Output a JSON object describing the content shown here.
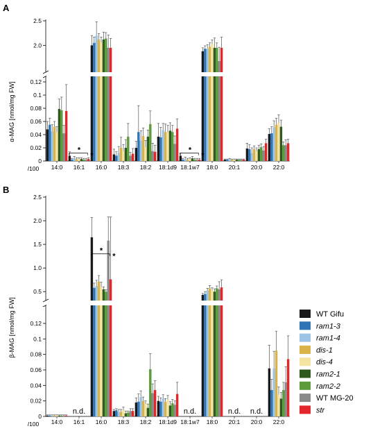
{
  "chart_data": [
    {
      "type": "bar",
      "panel_label": "A",
      "ylabel": "α-MAG [nmol/mg FW]",
      "x_extra_label": "/100",
      "broken_axis": true,
      "lower_ylim": [
        0,
        0.12
      ],
      "lower_yticks": [
        "0",
        "0.02",
        "0.04",
        "0.06",
        "0.08",
        "0.1",
        "0.12"
      ],
      "upper_ylim": [
        1.75,
        2.5
      ],
      "upper_yticks": [
        "2.0",
        "2.5"
      ],
      "upper_categories_note": "16:0 and 18:0 drawn on upper scale",
      "categories": [
        "14:0",
        "16:1",
        "16:0",
        "18:3",
        "18:2",
        "18:1d9",
        "18:1w7",
        "18:0",
        "20:1",
        "20:0",
        "22:0"
      ],
      "series": [
        {
          "name": "WT Gifu",
          "values": [
            0.048,
            0.008,
            2.0,
            0.01,
            0.02,
            0.037,
            0.008,
            1.88,
            0.002,
            0.019,
            0.041
          ],
          "errors": [
            0.012,
            0.006,
            0.2,
            0.008,
            0.01,
            0.02,
            0.004,
            0.07,
            0.001,
            0.008,
            0.008
          ]
        },
        {
          "name": "ram1-3",
          "values": [
            0.055,
            0.002,
            2.05,
            0.008,
            0.044,
            0.036,
            0.002,
            1.93,
            0.002,
            0.018,
            0.042
          ],
          "errors": [
            0.01,
            0.002,
            0.12,
            0.006,
            0.04,
            0.015,
            0.002,
            0.06,
            0.001,
            0.007,
            0.01
          ]
        },
        {
          "name": "ram1-4",
          "values": [
            0.045,
            0.004,
            2.2,
            0.012,
            0.031,
            0.047,
            0.003,
            1.93,
            0.003,
            0.012,
            0.051
          ],
          "errors": [
            0.01,
            0.003,
            0.28,
            0.01,
            0.015,
            0.01,
            0.003,
            0.08,
            0.001,
            0.008,
            0.01
          ]
        },
        {
          "name": "dis-1",
          "values": [
            0.052,
            0.003,
            2.12,
            0.02,
            0.038,
            0.044,
            0.002,
            1.97,
            0.002,
            0.018,
            0.055
          ],
          "errors": [
            0.008,
            0.002,
            0.12,
            0.016,
            0.012,
            0.012,
            0.002,
            0.08,
            0.001,
            0.005,
            0.01
          ]
        },
        {
          "name": "dis-4",
          "values": [
            0.044,
            0.003,
            2.06,
            0.015,
            0.021,
            0.044,
            0.003,
            2.03,
            0.002,
            0.015,
            0.058
          ],
          "errors": [
            0.008,
            0.002,
            0.11,
            0.01,
            0.01,
            0.01,
            0.002,
            0.08,
            0.001,
            0.005,
            0.012
          ]
        },
        {
          "name": "ram2-1",
          "values": [
            0.079,
            0.003,
            2.12,
            0.02,
            0.037,
            0.046,
            0.004,
            1.95,
            0.002,
            0.018,
            0.052
          ],
          "errors": [
            0.015,
            0.002,
            0.15,
            0.012,
            0.01,
            0.012,
            0.003,
            0.2,
            0.001,
            0.006,
            0.01
          ]
        },
        {
          "name": "ram2-2",
          "values": [
            0.077,
            0.002,
            2.14,
            0.037,
            0.056,
            0.044,
            0.002,
            1.95,
            0.002,
            0.021,
            0.024
          ],
          "errors": [
            0.02,
            0.002,
            0.12,
            0.02,
            0.02,
            0.01,
            0.002,
            0.1,
            0.001,
            0.005,
            0.005
          ]
        },
        {
          "name": "WT MG-20",
          "values": [
            0.042,
            0.002,
            1.95,
            0.008,
            0.015,
            0.026,
            0.002,
            1.68,
            0.002,
            0.016,
            0.024
          ],
          "errors": [
            0.012,
            0.002,
            0.26,
            0.005,
            0.012,
            0.012,
            0.002,
            0.28,
            0.001,
            0.006,
            0.008
          ]
        },
        {
          "name": "str",
          "values": [
            0.076,
            0.003,
            1.95,
            0.011,
            0.014,
            0.049,
            0.002,
            1.95,
            0.002,
            0.027,
            0.027
          ],
          "errors": [
            0.04,
            0.002,
            0.19,
            0.008,
            0.01,
            0.015,
            0.002,
            0.22,
            0.001,
            0.006,
            0.006
          ]
        }
      ],
      "annotations": [
        {
          "text": "*",
          "category": "16:1"
        },
        {
          "text": "*",
          "category": "16:1"
        },
        {
          "text": "*",
          "category": "18:1w7"
        },
        {
          "text": "*",
          "category": "18:1w7"
        }
      ]
    },
    {
      "type": "bar",
      "panel_label": "B",
      "ylabel": "β-MAG [nmol/mg FW]",
      "x_extra_label": "/100",
      "broken_axis": true,
      "lower_ylim": [
        0,
        0.12
      ],
      "lower_yticks": [
        "0",
        "0.02",
        "0.04",
        "0.06",
        "0.08",
        "0.1",
        "0.12"
      ],
      "upper_ylim": [
        0.4,
        2.5
      ],
      "upper_yticks": [
        "0.5",
        "1.0",
        "1.5",
        "2.0",
        "2.5"
      ],
      "categories": [
        "14:0",
        "16:1",
        "16:0",
        "18:3",
        "18:2",
        "18:1d9",
        "18:1w7",
        "18:0",
        "20:1",
        "20:0",
        "22:0"
      ],
      "not_detected_label": "n.d.",
      "not_detected_categories": [
        "16:1",
        "18:1w7",
        "20:1",
        "20:0"
      ],
      "series": [
        {
          "name": "WT Gifu",
          "values": [
            0.001,
            null,
            1.65,
            0.007,
            0.018,
            0.02,
            null,
            0.43,
            null,
            null,
            0.062
          ],
          "errors": [
            0.001,
            null,
            0.42,
            0.002,
            0.006,
            0.006,
            null,
            0.03,
            null,
            null,
            0.03
          ]
        },
        {
          "name": "ram1-3",
          "values": [
            0.001,
            null,
            0.58,
            0.008,
            0.019,
            0.019,
            null,
            0.45,
            null,
            null,
            0.034
          ],
          "errors": [
            0.001,
            null,
            0.1,
            0.002,
            0.01,
            0.005,
            null,
            0.05,
            null,
            null,
            0.014
          ]
        },
        {
          "name": "ram1-4",
          "values": [
            0.001,
            null,
            0.62,
            0.006,
            0.025,
            0.023,
            null,
            0.52,
            null,
            null,
            0.062
          ],
          "errors": [
            0.001,
            null,
            0.12,
            0.003,
            0.008,
            0.005,
            null,
            0.05,
            null,
            null,
            0.022
          ]
        },
        {
          "name": "dis-1",
          "values": [
            0.001,
            null,
            0.71,
            0.006,
            0.02,
            0.019,
            null,
            0.57,
            null,
            null,
            0.085
          ],
          "errors": [
            0.001,
            null,
            0.13,
            0.003,
            0.005,
            0.004,
            null,
            0.06,
            null,
            null,
            0.025
          ]
        },
        {
          "name": "dis-4",
          "values": [
            0.001,
            null,
            0.6,
            0.008,
            0.016,
            0.022,
            null,
            0.53,
            null,
            null,
            0.028
          ],
          "errors": [
            0.001,
            null,
            0.1,
            0.004,
            0.004,
            0.005,
            null,
            0.05,
            null,
            null,
            0.01
          ]
        },
        {
          "name": "ram2-1",
          "values": [
            0.001,
            null,
            0.55,
            0.004,
            0.011,
            0.014,
            null,
            0.5,
            null,
            null,
            0.023
          ],
          "errors": [
            0.001,
            null,
            0.05,
            0.003,
            0.005,
            0.005,
            null,
            0.06,
            null,
            null,
            0.008
          ]
        },
        {
          "name": "ram2-2",
          "values": [
            0.001,
            null,
            0.5,
            0.005,
            0.061,
            0.017,
            null,
            0.57,
            null,
            null,
            0.034
          ],
          "errors": [
            0.001,
            null,
            0.04,
            0.002,
            0.02,
            0.005,
            null,
            0.05,
            null,
            null,
            0.01
          ]
        },
        {
          "name": "WT MG-20",
          "values": [
            0.001,
            null,
            1.58,
            0.007,
            0.03,
            0.015,
            null,
            0.55,
            null,
            null,
            0.044
          ],
          "errors": [
            0.001,
            null,
            0.5,
            0.003,
            0.012,
            0.005,
            null,
            0.16,
            null,
            null,
            0.02
          ]
        },
        {
          "name": "str",
          "values": [
            0.001,
            null,
            0.76,
            0.007,
            0.034,
            0.029,
            null,
            0.59,
            null,
            null,
            0.074
          ],
          "errors": [
            0.001,
            null,
            1.32,
            0.003,
            0.012,
            0.015,
            null,
            0.16,
            null,
            null,
            0.03
          ]
        }
      ],
      "annotations": [
        {
          "text": "*",
          "category": "16:0"
        },
        {
          "text": "*",
          "category": "16:0"
        }
      ]
    }
  ],
  "legend": {
    "placement": "bottom-right",
    "entries": [
      {
        "label": "WT Gifu",
        "italic": false
      },
      {
        "label": "ram1-3",
        "italic": true
      },
      {
        "label": "ram1-4",
        "italic": true
      },
      {
        "label": "dis-1",
        "italic": true
      },
      {
        "label": "dis-4",
        "italic": true
      },
      {
        "label": "ram2-1",
        "italic": true
      },
      {
        "label": "ram2-2",
        "italic": true
      },
      {
        "label": "WT MG-20",
        "italic": false
      },
      {
        "label": "str",
        "italic": true
      }
    ]
  },
  "colors": {
    "WT Gifu": "#1a1a1a",
    "ram1-3": "#2f74b5",
    "ram1-4": "#9dc3e6",
    "dis-1": "#d9b34a",
    "dis-4": "#f5e3a1",
    "ram2-1": "#2f5a1e",
    "ram2-2": "#5b9b3a",
    "WT MG-20": "#8a8a8a",
    "str": "#e3262b"
  }
}
